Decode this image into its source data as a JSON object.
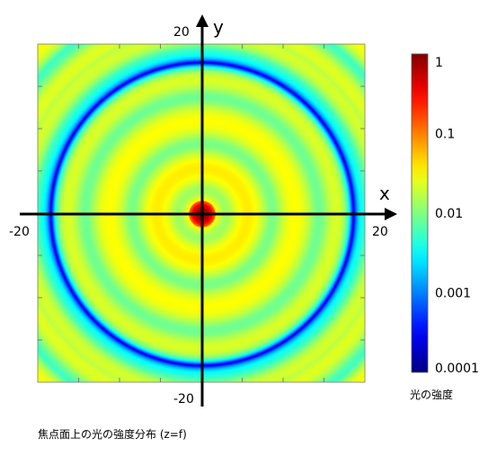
{
  "caption": "焦点面上の光の強度分布 (z=f)",
  "chart_data": {
    "type": "heatmap",
    "title": "",
    "xlabel": "x",
    "ylabel": "y",
    "xlim": [
      -20,
      20
    ],
    "ylim": [
      -20,
      20
    ],
    "x_tick_labels": [
      "-20",
      "20"
    ],
    "y_tick_labels": [
      "-20",
      "20"
    ],
    "colorbar": {
      "title": "光の強度",
      "scale": "log",
      "range": [
        0.0001,
        1
      ],
      "tick_labels": [
        "1",
        "0.1",
        "0.01",
        "0.001",
        "0.0001"
      ],
      "colormap": [
        "#00007f",
        "#0000ff",
        "#00ffff",
        "#ffff00",
        "#ff0000",
        "#7f0000"
      ]
    },
    "description_values": {
      "center_intensity": 1,
      "dark_ring_radius": 18.5,
      "background_intensity": 0.01
    }
  }
}
